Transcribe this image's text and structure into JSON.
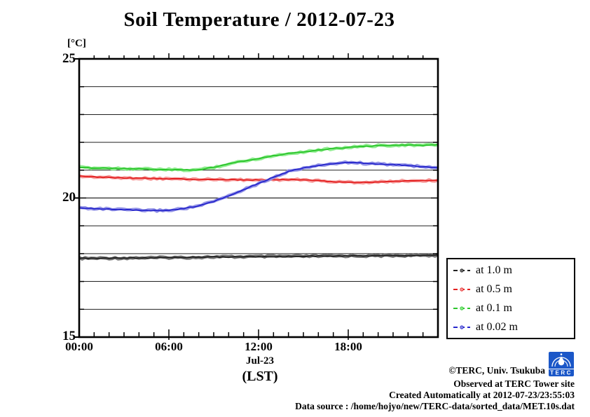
{
  "title": "Soil Temperature / 2012-07-23",
  "y_unit_label": "[°C]",
  "x_axis": {
    "tick_labels": [
      "00:00",
      "06:00",
      "12:00",
      "18:00"
    ],
    "tick_hours": [
      0,
      6,
      12,
      18
    ],
    "date_label": "Jul-23",
    "timezone_label": "(LST)"
  },
  "y_axis": {
    "tick_labels": [
      "25",
      "20",
      "15"
    ],
    "tick_values": [
      25,
      20,
      15
    ]
  },
  "legend": {
    "marker_icon": "line-point-marker-icon"
  },
  "footer": {
    "copyright": "©TERC, Univ. Tsukuba",
    "observed": "Observed at TERC Tower site",
    "created": "Created Automatically at 2012-07-23/23:55:03",
    "source": "Data source : /home/hojyo/new/TERC-data/sorted_data/MET.10s.dat",
    "logo_text": "TERC",
    "logo_color": "#1b57c8"
  },
  "chart_data": {
    "type": "line",
    "title": "Soil Temperature / 2012-07-23",
    "xlabel": "Jul-23 (LST)",
    "ylabel": "[°C]",
    "xlim_hours": [
      0,
      24
    ],
    "ylim": [
      15,
      25
    ],
    "grid": "horizontal, every 1 degree C",
    "legend_position": "outside right bottom",
    "x_hours": [
      0,
      1,
      2,
      3,
      4,
      5,
      6,
      7,
      8,
      9,
      10,
      11,
      12,
      13,
      14,
      15,
      16,
      17,
      18,
      19,
      20,
      21,
      22,
      23,
      24
    ],
    "series": [
      {
        "name": "at 1.0 m",
        "color": "#222222",
        "band_color": "#707070",
        "values": [
          17.83,
          17.83,
          17.84,
          17.84,
          17.85,
          17.85,
          17.86,
          17.86,
          17.87,
          17.88,
          17.88,
          17.89,
          17.89,
          17.9,
          17.9,
          17.9,
          17.91,
          17.91,
          17.92,
          17.92,
          17.92,
          17.93,
          17.93,
          17.94,
          17.94
        ]
      },
      {
        "name": "at 0.5 m",
        "color": "#e32222",
        "band_color": "#f79a9a",
        "values": [
          20.78,
          20.76,
          20.74,
          20.72,
          20.71,
          20.7,
          20.69,
          20.68,
          20.67,
          20.67,
          20.66,
          20.65,
          20.65,
          20.66,
          20.66,
          20.65,
          20.62,
          20.58,
          20.57,
          20.56,
          20.57,
          20.6,
          20.62,
          20.63,
          20.63
        ]
      },
      {
        "name": "at 0.1 m",
        "color": "#2dc52d",
        "band_color": "#8aec8a",
        "values": [
          21.1,
          21.08,
          21.07,
          21.06,
          21.05,
          21.03,
          21.02,
          21.0,
          21.02,
          21.1,
          21.22,
          21.33,
          21.42,
          21.52,
          21.6,
          21.66,
          21.72,
          21.78,
          21.82,
          21.86,
          21.88,
          21.9,
          21.9,
          21.89,
          21.92
        ]
      },
      {
        "name": "at 0.02 m",
        "color": "#2828cc",
        "band_color": "#9090e6",
        "values": [
          19.65,
          19.62,
          19.6,
          19.58,
          19.56,
          19.55,
          19.56,
          19.62,
          19.72,
          19.87,
          20.08,
          20.3,
          20.52,
          20.75,
          20.95,
          21.08,
          21.16,
          21.24,
          21.28,
          21.25,
          21.22,
          21.2,
          21.17,
          21.12,
          21.08
        ]
      }
    ]
  }
}
